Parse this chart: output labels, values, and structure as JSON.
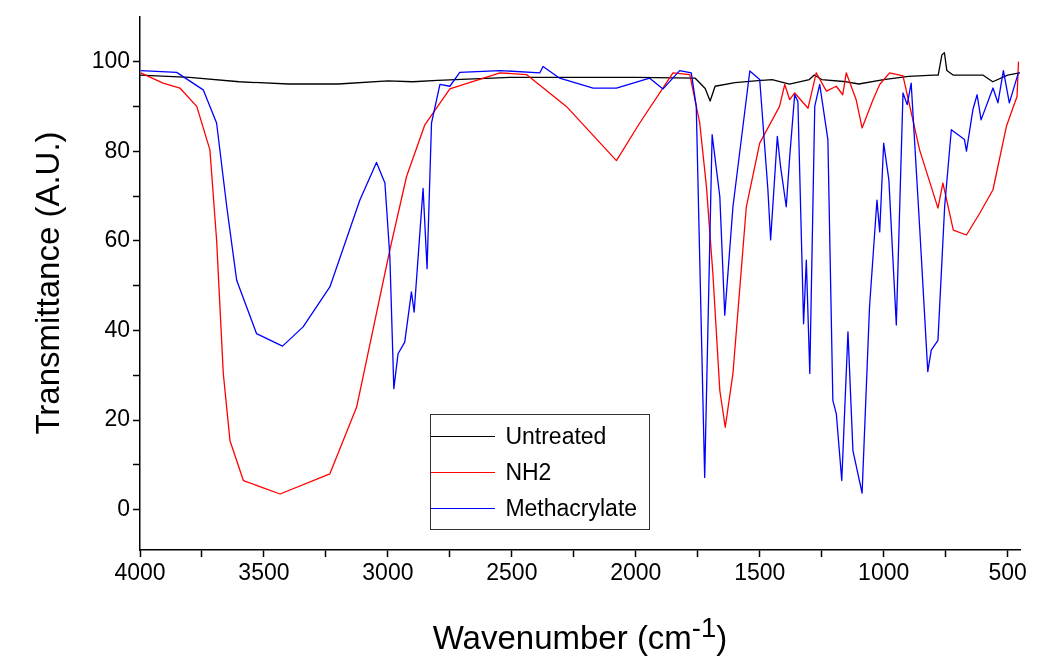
{
  "chart_data": {
    "type": "line",
    "xlabel": "Wavenumber (cm$^{-1}$)",
    "ylabel": "Transmittance (A.U.)",
    "xlim": [
      4000,
      450
    ],
    "ylim": [
      -9,
      110
    ],
    "xticks": [
      4000,
      {
        "value": 3750,
        "label": null
      },
      3500,
      {
        "value": 3250,
        "label": null
      },
      3000,
      {
        "value": 2750,
        "label": null
      },
      2500,
      {
        "value": 2250,
        "label": null
      },
      2000,
      {
        "value": 1750,
        "label": null
      },
      1500,
      {
        "value": 1250,
        "label": null
      },
      1000,
      {
        "value": 750,
        "label": null
      },
      500
    ],
    "yticks": [
      0,
      {
        "value": 10,
        "label": null
      },
      20,
      {
        "value": 30,
        "label": null
      },
      40,
      {
        "value": 50,
        "label": null
      },
      60,
      {
        "value": 70,
        "label": null
      },
      80,
      {
        "value": 90,
        "label": null
      },
      100
    ],
    "grid": false,
    "legend": "bottom",
    "line_style": "solid",
    "marker": "none",
    "series": [
      {
        "name": "Untreated",
        "color": "#000000",
        "x": [
          4000,
          3800,
          3600,
          3400,
          3200,
          3000,
          2900,
          2800,
          2500,
          2000,
          1760,
          1720,
          1700,
          1680,
          1600,
          1450,
          1380,
          1300,
          1280,
          1250,
          1150,
          1100,
          1000,
          900,
          800,
          780,
          765,
          755,
          745,
          720,
          600,
          560,
          500,
          450
        ],
        "values": [
          97,
          96.5,
          95.5,
          95,
          95,
          95.7,
          95.5,
          95.8,
          96.5,
          96.5,
          96.3,
          94,
          91.2,
          94.5,
          95.3,
          96,
          95,
          96,
          97,
          96,
          95.5,
          95,
          96,
          96.7,
          97,
          97,
          101.5,
          102,
          98,
          97,
          97,
          95.5,
          97,
          97.5
        ]
      },
      {
        "name": "NH2",
        "color": "#ff0000",
        "x": [
          3997,
          3907,
          3839,
          3771,
          3718,
          3691,
          3664,
          3637,
          3583,
          3435,
          3234,
          3126,
          2992,
          2925,
          2851,
          2750,
          2548,
          2441,
          2280,
          2078,
          1984,
          1850,
          1782,
          1742,
          1715,
          1689,
          1661,
          1639,
          1608,
          1554,
          1500,
          1420,
          1399,
          1379,
          1359,
          1305,
          1272,
          1231,
          1191,
          1165,
          1151,
          1111,
          1087,
          1043,
          1016,
          976,
          922,
          855,
          781,
          761,
          719,
          666,
          613,
          559,
          505,
          479,
          462,
          456
        ],
        "values": [
          97.5,
          95.2,
          94.1,
          90,
          80.3,
          60.2,
          30.4,
          15.4,
          6.5,
          3.5,
          8,
          22.9,
          58,
          74.3,
          85.9,
          93.9,
          97.5,
          97.1,
          90,
          77.9,
          86.3,
          97.5,
          97.1,
          86.3,
          72.1,
          52.7,
          26.6,
          18.4,
          30.4,
          67.6,
          81.8,
          90,
          94.9,
          91.5,
          93,
          89.6,
          97.5,
          93.4,
          94.5,
          92.6,
          97.5,
          91.5,
          85.2,
          91.5,
          94.9,
          97.5,
          96.8,
          80.3,
          67.3,
          72.9,
          62.4,
          61.3,
          66.1,
          71.4,
          85.5,
          89.6,
          92.2,
          100
        ]
      },
      {
        "name": "Methacrylate",
        "color": "#0000ff",
        "x": [
          3997,
          3852,
          3745,
          3691,
          3650,
          3610,
          3530,
          3425,
          3342,
          3234,
          3113,
          3046,
          3012,
          2992,
          2976,
          2959,
          2932,
          2905,
          2894,
          2858,
          2842,
          2824,
          2790,
          2750,
          2710,
          2548,
          2387,
          2374,
          2307,
          2172,
          2078,
          1944,
          1890,
          1823,
          1776,
          1756,
          1722,
          1692,
          1661,
          1641,
          1608,
          1540,
          1500,
          1467,
          1456,
          1429,
          1416,
          1393,
          1379,
          1359,
          1346,
          1323,
          1312,
          1298,
          1278,
          1258,
          1225,
          1205,
          1191,
          1169,
          1144,
          1124,
          1087,
          1057,
          1027,
          1016,
          1000,
          979,
          949,
          922,
          905,
          889,
          855,
          822,
          808,
          781,
          754,
          727,
          674,
          666,
          640,
          623,
          607,
          559,
          539,
          517,
          493,
          456
        ],
        "values": [
          98,
          97.6,
          93.7,
          86.3,
          67.6,
          51.2,
          39.3,
          36.5,
          40.8,
          49.7,
          69.1,
          77.5,
          72.9,
          56.4,
          27,
          34.8,
          37.4,
          48.6,
          44.1,
          71.7,
          53.8,
          86.3,
          94.9,
          94.5,
          97.6,
          98,
          97.5,
          98.9,
          96.3,
          94.1,
          94.1,
          96.3,
          93.9,
          98,
          97.5,
          90,
          7.2,
          83.7,
          69.9,
          43.4,
          67.6,
          97.9,
          96,
          71.4,
          60.2,
          83.3,
          76.6,
          67.6,
          78.8,
          92.6,
          91.1,
          41.5,
          55.7,
          30.4,
          90,
          94.9,
          82.6,
          24.4,
          21.4,
          6.5,
          39.7,
          13.2,
          3.7,
          45.3,
          69.1,
          62,
          81.8,
          73.6,
          41.2,
          93,
          90.4,
          95.2,
          63.2,
          30.8,
          35.6,
          37.8,
          67.6,
          84.8,
          82.6,
          80,
          89.3,
          92.6,
          87,
          94.1,
          90.8,
          98,
          90.8,
          97.6
        ]
      }
    ]
  }
}
